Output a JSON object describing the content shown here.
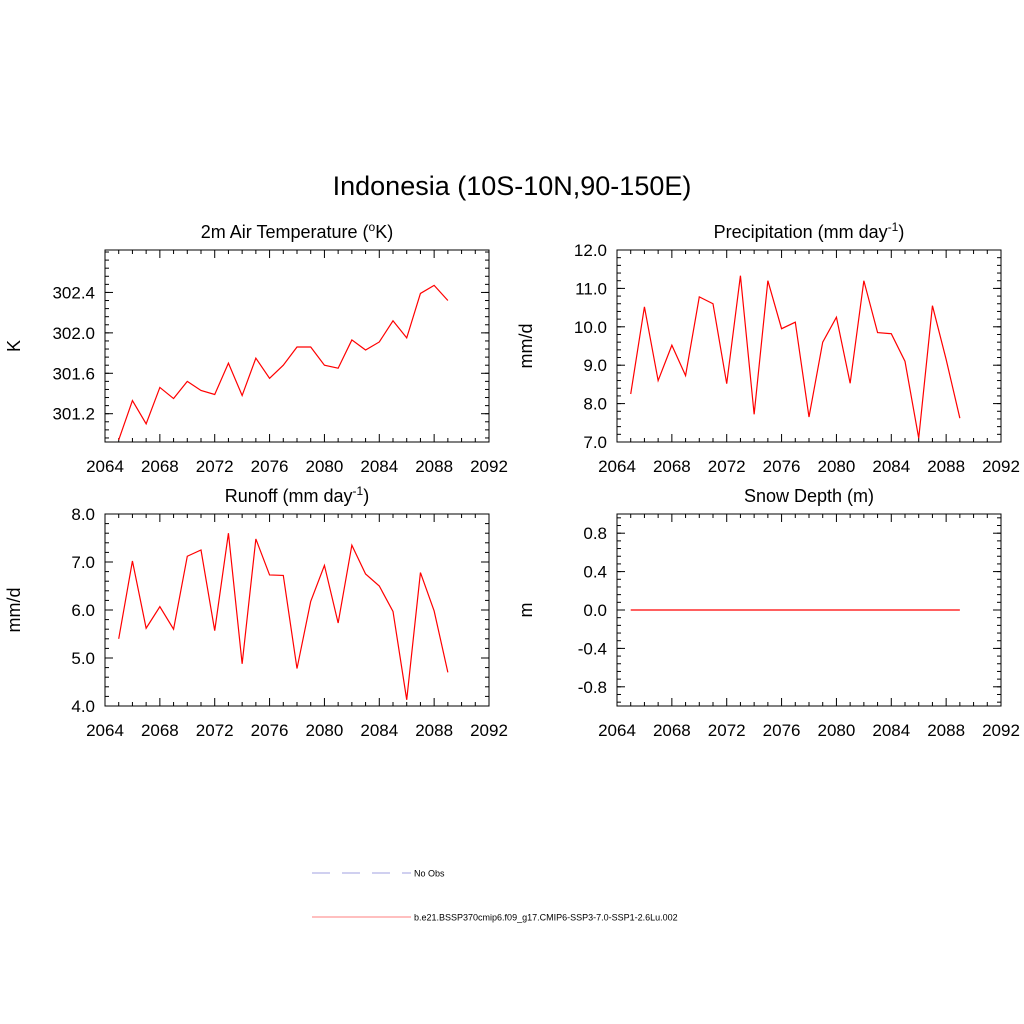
{
  "title": "Indonesia (10S-10N,90-150E)",
  "chart_data": [
    {
      "type": "line",
      "title": "2m Air Temperature (",
      "title_sup": "o",
      "title_suffix": "K)",
      "ylabel": "K",
      "xlim": [
        2064,
        2092
      ],
      "ylim": [
        300.92,
        302.82
      ],
      "xticks": [
        2064,
        2068,
        2072,
        2076,
        2080,
        2084,
        2088,
        2092
      ],
      "xtick_labels": [
        "2064",
        "2068",
        "2072",
        "2076",
        "2080",
        "2084",
        "2088",
        "2092"
      ],
      "yticks": [
        301.2,
        301.6,
        302.0,
        302.4
      ],
      "ytick_labels": [
        "301.2",
        "301.6",
        "302.0",
        "302.4"
      ],
      "series": [
        {
          "color": "#ff0000",
          "x": [
            2065,
            2066,
            2067,
            2068,
            2069,
            2070,
            2071,
            2072,
            2073,
            2074,
            2075,
            2076,
            2077,
            2078,
            2079,
            2080,
            2081,
            2082,
            2083,
            2084,
            2085,
            2086,
            2087,
            2088,
            2089
          ],
          "y": [
            300.94,
            301.33,
            301.1,
            301.46,
            301.35,
            301.52,
            301.43,
            301.39,
            301.7,
            301.38,
            301.75,
            301.55,
            301.68,
            301.86,
            301.86,
            301.68,
            301.65,
            301.93,
            301.83,
            301.91,
            302.12,
            301.95,
            302.39,
            302.47,
            302.32
          ]
        }
      ]
    },
    {
      "type": "line",
      "title": "Precipitation (mm day",
      "title_sup": "-1",
      "title_suffix": ")",
      "ylabel": "mm/d",
      "xlim": [
        2064,
        2092
      ],
      "ylim": [
        7.0,
        12.0
      ],
      "xticks": [
        2064,
        2068,
        2072,
        2076,
        2080,
        2084,
        2088,
        2092
      ],
      "xtick_labels": [
        "2064",
        "2068",
        "2072",
        "2076",
        "2080",
        "2084",
        "2088",
        "2092"
      ],
      "yticks": [
        7.0,
        8.0,
        9.0,
        10.0,
        11.0,
        12.0
      ],
      "ytick_labels": [
        "7.0",
        "8.0",
        "9.0",
        "10.0",
        "11.0",
        "12.0"
      ],
      "series": [
        {
          "color": "#ff0000",
          "x": [
            2065,
            2066,
            2067,
            2068,
            2069,
            2070,
            2071,
            2072,
            2073,
            2074,
            2075,
            2076,
            2077,
            2078,
            2079,
            2080,
            2081,
            2082,
            2083,
            2084,
            2085,
            2086,
            2087,
            2088,
            2089
          ],
          "y": [
            8.25,
            10.52,
            8.6,
            9.52,
            8.73,
            10.78,
            10.6,
            8.52,
            11.33,
            7.72,
            11.2,
            9.95,
            10.12,
            7.65,
            9.6,
            10.25,
            8.53,
            11.2,
            9.85,
            9.82,
            9.1,
            7.1,
            10.55,
            9.15,
            7.62
          ]
        }
      ]
    },
    {
      "type": "line",
      "title": "Runoff (mm day",
      "title_sup": "-1",
      "title_suffix": ")",
      "ylabel": "mm/d",
      "xlim": [
        2064,
        2092
      ],
      "ylim": [
        4.0,
        8.0
      ],
      "xticks": [
        2064,
        2068,
        2072,
        2076,
        2080,
        2084,
        2088,
        2092
      ],
      "xtick_labels": [
        "2064",
        "2068",
        "2072",
        "2076",
        "2080",
        "2084",
        "2088",
        "2092"
      ],
      "yticks": [
        4.0,
        5.0,
        6.0,
        7.0,
        8.0
      ],
      "ytick_labels": [
        "4.0",
        "5.0",
        "6.0",
        "7.0",
        "8.0"
      ],
      "series": [
        {
          "color": "#ff0000",
          "x": [
            2065,
            2066,
            2067,
            2068,
            2069,
            2070,
            2071,
            2072,
            2073,
            2074,
            2075,
            2076,
            2077,
            2078,
            2079,
            2080,
            2081,
            2082,
            2083,
            2084,
            2085,
            2086,
            2087,
            2088,
            2089
          ],
          "y": [
            5.4,
            7.02,
            5.62,
            6.07,
            5.6,
            7.12,
            7.25,
            5.57,
            7.6,
            4.88,
            7.48,
            6.73,
            6.72,
            4.78,
            6.18,
            6.93,
            5.73,
            7.35,
            6.75,
            6.5,
            5.97,
            4.13,
            6.78,
            5.98,
            4.7
          ]
        }
      ]
    },
    {
      "type": "line",
      "title": "Snow Depth (m)",
      "title_sup": "",
      "title_suffix": "",
      "ylabel": "m",
      "xlim": [
        2064,
        2092
      ],
      "ylim": [
        -1.0,
        1.0
      ],
      "xticks": [
        2064,
        2068,
        2072,
        2076,
        2080,
        2084,
        2088,
        2092
      ],
      "xtick_labels": [
        "2064",
        "2068",
        "2072",
        "2076",
        "2080",
        "2084",
        "2088",
        "2092"
      ],
      "yticks": [
        -0.8,
        -0.4,
        0.0,
        0.4,
        0.8
      ],
      "ytick_labels": [
        "-0.8",
        "-0.4",
        "0.0",
        "0.4",
        "0.8"
      ],
      "series": [
        {
          "color": "#ff0000",
          "x": [
            2065,
            2089
          ],
          "y": [
            0.0,
            0.0
          ]
        }
      ]
    }
  ],
  "legend": [
    {
      "label": "No Obs",
      "color": "#b4b4e6",
      "style": "dashed"
    },
    {
      "label": "b.e21.BSSP370cmip6.f09_g17.CMIP6-SSP3-7.0-SSP1-2.6Lu.002",
      "color": "#ff9999",
      "style": "solid"
    }
  ]
}
